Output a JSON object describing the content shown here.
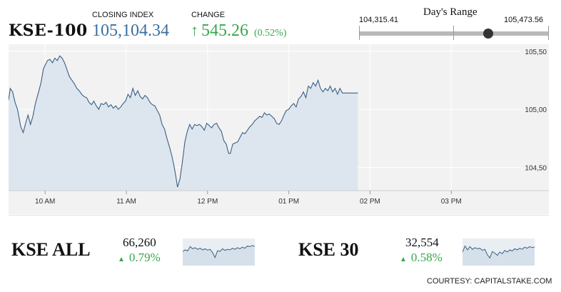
{
  "header": {
    "index_name": "KSE-100",
    "closing_label": "CLOSING INDEX",
    "closing_value": "105,104.34",
    "change_label": "CHANGE",
    "change_arrow": "↑",
    "change_value": "545.26",
    "change_percent": "(0.52%)"
  },
  "range": {
    "title": "Day's Range",
    "low": "104,315.41",
    "high": "105,473.56",
    "position": 0.68
  },
  "chart_data": {
    "type": "area",
    "title": "",
    "xlabel": "",
    "ylabel": "",
    "x_ticks": [
      "10 AM",
      "11 AM",
      "12 PM",
      "01 PM",
      "02 PM",
      "03 PM"
    ],
    "x_tick_hours": [
      10,
      11,
      12,
      13,
      14,
      15
    ],
    "y_ticks": [
      "105,50",
      "105,00",
      "104,50"
    ],
    "y_tick_values": [
      105500,
      105000,
      104500
    ],
    "xlim": [
      9.55,
      15.85
    ],
    "ylim": [
      104300,
      105560
    ],
    "series": [
      {
        "values": [
          [
            9.55,
            105080
          ],
          [
            9.57,
            105180
          ],
          [
            9.6,
            105150
          ],
          [
            9.63,
            105060
          ],
          [
            9.66,
            105000
          ],
          [
            9.7,
            104850
          ],
          [
            9.73,
            104800
          ],
          [
            9.76,
            104880
          ],
          [
            9.79,
            104950
          ],
          [
            9.82,
            104870
          ],
          [
            9.85,
            104940
          ],
          [
            9.88,
            105050
          ],
          [
            9.92,
            105150
          ],
          [
            9.95,
            105230
          ],
          [
            9.98,
            105350
          ],
          [
            10.0,
            105380
          ],
          [
            10.03,
            105420
          ],
          [
            10.06,
            105430
          ],
          [
            10.09,
            105400
          ],
          [
            10.12,
            105440
          ],
          [
            10.15,
            105420
          ],
          [
            10.18,
            105460
          ],
          [
            10.21,
            105440
          ],
          [
            10.24,
            105400
          ],
          [
            10.27,
            105340
          ],
          [
            10.3,
            105280
          ],
          [
            10.33,
            105250
          ],
          [
            10.36,
            105220
          ],
          [
            10.39,
            105180
          ],
          [
            10.42,
            105160
          ],
          [
            10.45,
            105130
          ],
          [
            10.48,
            105110
          ],
          [
            10.51,
            105100
          ],
          [
            10.54,
            105060
          ],
          [
            10.57,
            105040
          ],
          [
            10.6,
            105070
          ],
          [
            10.63,
            105030
          ],
          [
            10.66,
            105000
          ],
          [
            10.69,
            105050
          ],
          [
            10.72,
            105040
          ],
          [
            10.75,
            105060
          ],
          [
            10.78,
            105020
          ],
          [
            10.81,
            105040
          ],
          [
            10.84,
            105010
          ],
          [
            10.87,
            105030
          ],
          [
            10.9,
            105000
          ],
          [
            10.93,
            105020
          ],
          [
            10.96,
            105050
          ],
          [
            10.99,
            105070
          ],
          [
            11.02,
            105130
          ],
          [
            11.05,
            105100
          ],
          [
            11.08,
            105180
          ],
          [
            11.11,
            105120
          ],
          [
            11.14,
            105160
          ],
          [
            11.17,
            105110
          ],
          [
            11.2,
            105090
          ],
          [
            11.23,
            105120
          ],
          [
            11.26,
            105100
          ],
          [
            11.29,
            105060
          ],
          [
            11.32,
            105040
          ],
          [
            11.35,
            105030
          ],
          [
            11.38,
            104990
          ],
          [
            11.41,
            104950
          ],
          [
            11.44,
            104870
          ],
          [
            11.47,
            104830
          ],
          [
            11.5,
            104750
          ],
          [
            11.53,
            104680
          ],
          [
            11.56,
            104600
          ],
          [
            11.59,
            104500
          ],
          [
            11.61,
            104420
          ],
          [
            11.63,
            104330
          ],
          [
            11.66,
            104400
          ],
          [
            11.69,
            104550
          ],
          [
            11.72,
            104720
          ],
          [
            11.75,
            104810
          ],
          [
            11.78,
            104870
          ],
          [
            11.81,
            104830
          ],
          [
            11.84,
            104870
          ],
          [
            11.87,
            104860
          ],
          [
            11.9,
            104870
          ],
          [
            11.93,
            104850
          ],
          [
            11.96,
            104820
          ],
          [
            11.99,
            104880
          ],
          [
            12.02,
            104860
          ],
          [
            12.05,
            104840
          ],
          [
            12.08,
            104870
          ],
          [
            12.11,
            104880
          ],
          [
            12.14,
            104840
          ],
          [
            12.17,
            104810
          ],
          [
            12.2,
            104730
          ],
          [
            12.23,
            104700
          ],
          [
            12.26,
            104620
          ],
          [
            12.28,
            104620
          ],
          [
            12.31,
            104700
          ],
          [
            12.34,
            104710
          ],
          [
            12.37,
            104720
          ],
          [
            12.4,
            104760
          ],
          [
            12.43,
            104800
          ],
          [
            12.46,
            104790
          ],
          [
            12.49,
            104820
          ],
          [
            12.52,
            104850
          ],
          [
            12.55,
            104870
          ],
          [
            12.58,
            104900
          ],
          [
            12.61,
            104920
          ],
          [
            12.64,
            104940
          ],
          [
            12.67,
            104930
          ],
          [
            12.7,
            104970
          ],
          [
            12.73,
            104950
          ],
          [
            12.76,
            104960
          ],
          [
            12.79,
            104940
          ],
          [
            12.82,
            104920
          ],
          [
            12.85,
            104880
          ],
          [
            12.88,
            104870
          ],
          [
            12.91,
            104900
          ],
          [
            12.94,
            104950
          ],
          [
            12.97,
            104990
          ],
          [
            13.0,
            105000
          ],
          [
            13.03,
            105030
          ],
          [
            13.06,
            105050
          ],
          [
            13.09,
            105020
          ],
          [
            13.12,
            105090
          ],
          [
            13.15,
            105110
          ],
          [
            13.18,
            105150
          ],
          [
            13.21,
            105100
          ],
          [
            13.24,
            105200
          ],
          [
            13.27,
            105180
          ],
          [
            13.3,
            105230
          ],
          [
            13.33,
            105200
          ],
          [
            13.36,
            105250
          ],
          [
            13.39,
            105180
          ],
          [
            13.42,
            105150
          ],
          [
            13.45,
            105180
          ],
          [
            13.48,
            105160
          ],
          [
            13.51,
            105200
          ],
          [
            13.54,
            105150
          ],
          [
            13.57,
            105180
          ],
          [
            13.6,
            105130
          ],
          [
            13.63,
            105180
          ],
          [
            13.66,
            105140
          ],
          [
            13.7,
            105140
          ],
          [
            13.74,
            105140
          ],
          [
            13.78,
            105140
          ],
          [
            13.82,
            105140
          ],
          [
            13.85,
            105140
          ]
        ]
      }
    ]
  },
  "mini_indices": [
    {
      "name": "KSE ALL",
      "value": "66,260",
      "arrow": "▲",
      "change": "0.79%",
      "chart_data": {
        "type": "area",
        "x": [
          0,
          1,
          2,
          3,
          4,
          5,
          6,
          7,
          8,
          9,
          10,
          11,
          12,
          13,
          14,
          15,
          16,
          17,
          18,
          19,
          20,
          21,
          22,
          23,
          24,
          25,
          26,
          27,
          28,
          29
        ],
        "values": [
          52,
          58,
          54,
          70,
          62,
          66,
          60,
          64,
          58,
          62,
          57,
          60,
          48,
          30,
          55,
          52,
          62,
          56,
          60,
          58,
          64,
          60,
          66,
          62,
          68,
          64,
          72,
          70,
          74,
          71
        ]
      }
    },
    {
      "name": "KSE 30",
      "value": "32,554",
      "arrow": "▲",
      "change": "0.58%",
      "chart_data": {
        "type": "area",
        "x": [
          0,
          1,
          2,
          3,
          4,
          5,
          6,
          7,
          8,
          9,
          10,
          11,
          12,
          13,
          14,
          15,
          16,
          17,
          18,
          19,
          20,
          21,
          22,
          23,
          24,
          25,
          26,
          27,
          28,
          29
        ],
        "values": [
          50,
          72,
          58,
          70,
          60,
          66,
          62,
          64,
          56,
          60,
          40,
          28,
          52,
          46,
          38,
          50,
          44,
          56,
          50,
          58,
          54,
          62,
          58,
          64,
          60,
          68,
          64,
          70,
          66,
          69
        ]
      }
    }
  ],
  "footer": {
    "courtesy": "COURTESY: CAPITALSTAKE.COM"
  },
  "colors": {
    "line": "#3b5f86",
    "fill": "#dde6ee",
    "positive": "#36a84a",
    "closing": "#3a6fa0"
  }
}
